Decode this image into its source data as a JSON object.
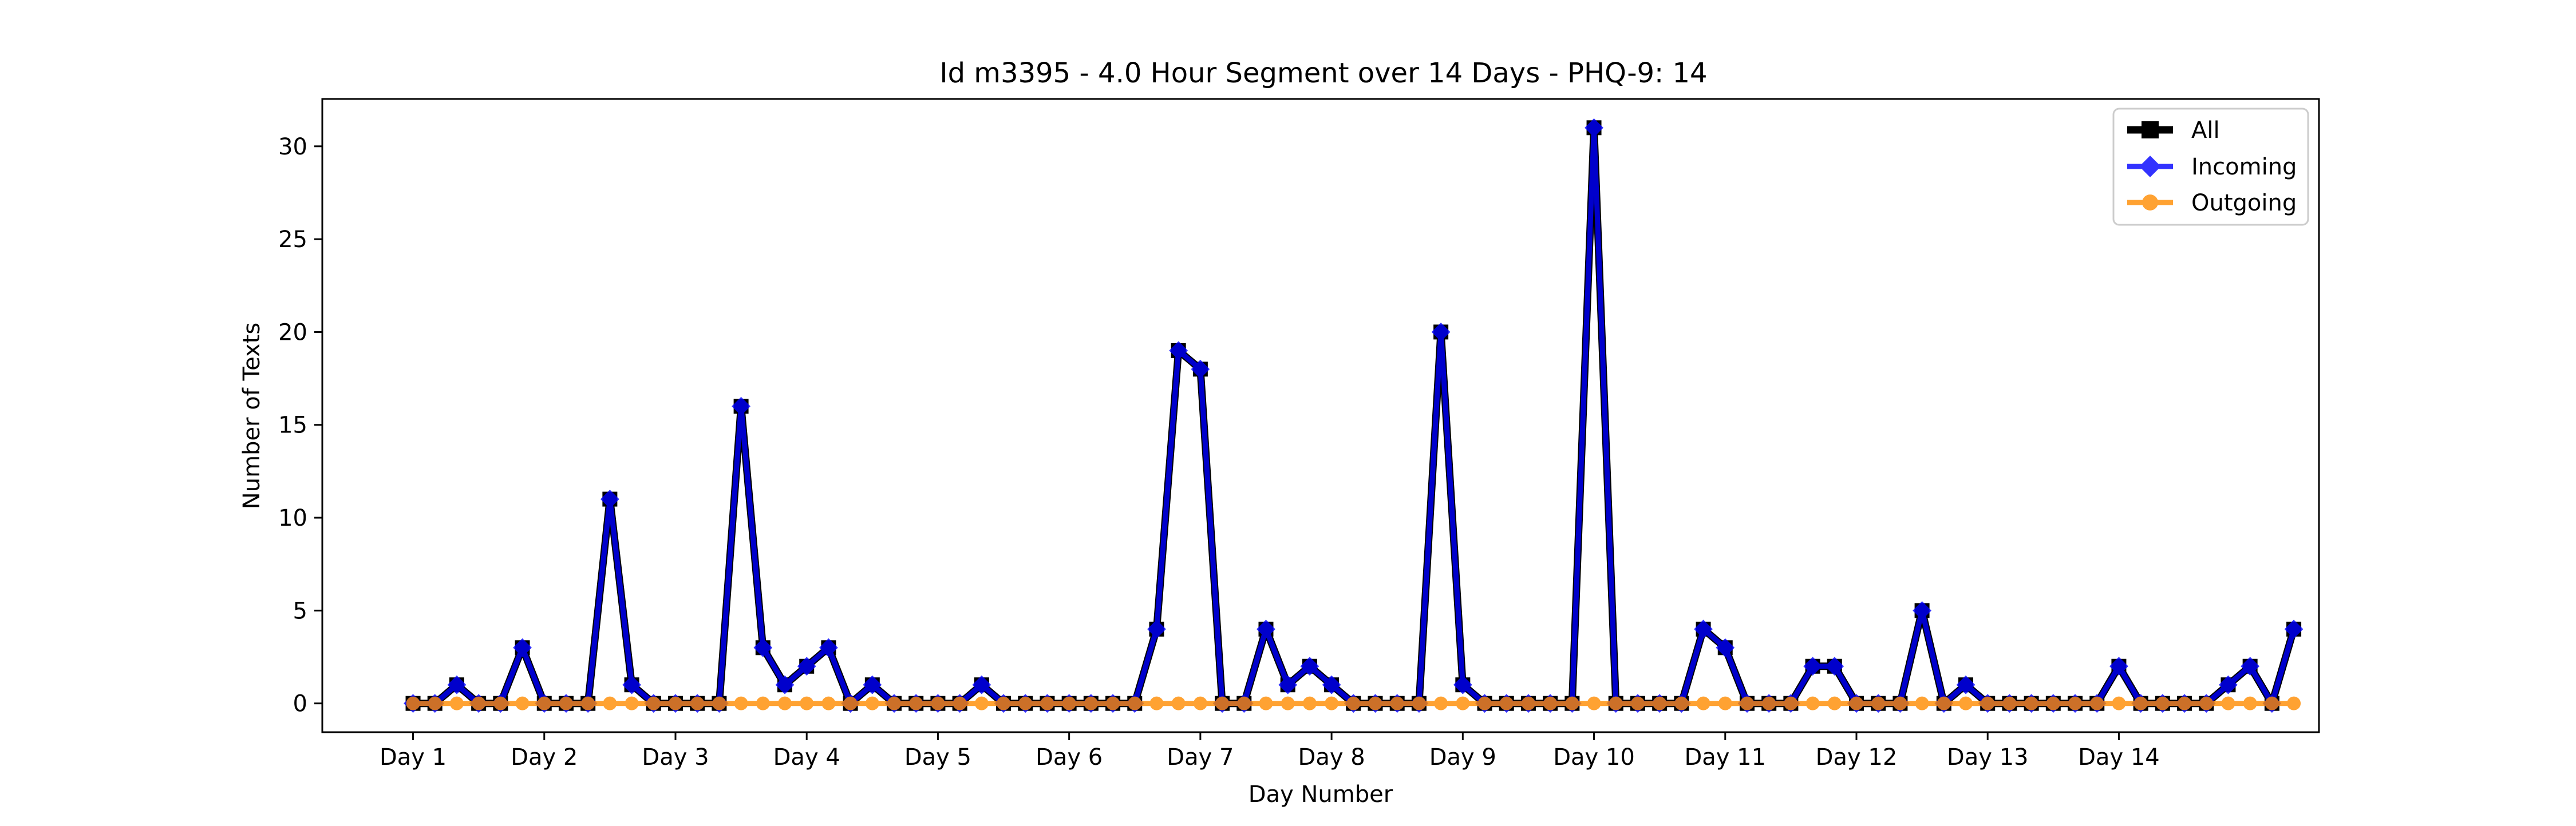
{
  "chart_data": {
    "type": "line",
    "title": "Id m3395 - 4.0 Hour Segment over 14 Days - PHQ-9: 14",
    "xlabel": "Day Number",
    "ylabel": "Number of Texts",
    "xticks": [
      {
        "label": "Day 1",
        "index": 0
      },
      {
        "label": "Day 2",
        "index": 6
      },
      {
        "label": "Day 3",
        "index": 12
      },
      {
        "label": "Day 4",
        "index": 18
      },
      {
        "label": "Day 5",
        "index": 24
      },
      {
        "label": "Day 6",
        "index": 30
      },
      {
        "label": "Day 7",
        "index": 36
      },
      {
        "label": "Day 8",
        "index": 42
      },
      {
        "label": "Day 9",
        "index": 48
      },
      {
        "label": "Day 10",
        "index": 54
      },
      {
        "label": "Day 11",
        "index": 60
      },
      {
        "label": "Day 12",
        "index": 66
      },
      {
        "label": "Day 13",
        "index": 72
      },
      {
        "label": "Day 14",
        "index": 78
      }
    ],
    "yticks": [
      0,
      5,
      10,
      15,
      20,
      25,
      30
    ],
    "ylim": [
      -1.55,
      32.55
    ],
    "xlim": [
      -4.15,
      87.15
    ],
    "grid": false,
    "legend_position": "top-right",
    "series": [
      {
        "name": "All",
        "color": "#000000",
        "marker": "square",
        "values": [
          0,
          0,
          1,
          0,
          0,
          3,
          0,
          0,
          0,
          11,
          1,
          0,
          0,
          0,
          0,
          16,
          3,
          1,
          2,
          3,
          0,
          1,
          0,
          0,
          0,
          0,
          1,
          0,
          0,
          0,
          0,
          0,
          0,
          0,
          4,
          19,
          18,
          0,
          0,
          4,
          1,
          2,
          1,
          0,
          0,
          0,
          0,
          20,
          1,
          0,
          0,
          0,
          0,
          0,
          31,
          0,
          0,
          0,
          0,
          4,
          3,
          0,
          0,
          0,
          2,
          2,
          0,
          0,
          0,
          5,
          0,
          1,
          0,
          0,
          0,
          0,
          0,
          0,
          2,
          0,
          0,
          0,
          0,
          1,
          2,
          0,
          4
        ]
      },
      {
        "name": "Incoming",
        "color": "#0000ff",
        "marker": "diamond",
        "values": [
          0,
          0,
          1,
          0,
          0,
          3,
          0,
          0,
          0,
          11,
          1,
          0,
          0,
          0,
          0,
          16,
          3,
          1,
          2,
          3,
          0,
          1,
          0,
          0,
          0,
          0,
          1,
          0,
          0,
          0,
          0,
          0,
          0,
          0,
          4,
          19,
          18,
          0,
          0,
          4,
          1,
          2,
          1,
          0,
          0,
          0,
          0,
          20,
          1,
          0,
          0,
          0,
          0,
          0,
          31,
          0,
          0,
          0,
          0,
          4,
          3,
          0,
          0,
          0,
          2,
          2,
          0,
          0,
          0,
          5,
          0,
          1,
          0,
          0,
          0,
          0,
          0,
          0,
          2,
          0,
          0,
          0,
          0,
          1,
          2,
          0,
          4
        ]
      },
      {
        "name": "Outgoing",
        "color": "#ff8c00",
        "marker": "circle",
        "values": [
          0,
          0,
          0,
          0,
          0,
          0,
          0,
          0,
          0,
          0,
          0,
          0,
          0,
          0,
          0,
          0,
          0,
          0,
          0,
          0,
          0,
          0,
          0,
          0,
          0,
          0,
          0,
          0,
          0,
          0,
          0,
          0,
          0,
          0,
          0,
          0,
          0,
          0,
          0,
          0,
          0,
          0,
          0,
          0,
          0,
          0,
          0,
          0,
          0,
          0,
          0,
          0,
          0,
          0,
          0,
          0,
          0,
          0,
          0,
          0,
          0,
          0,
          0,
          0,
          0,
          0,
          0,
          0,
          0,
          0,
          0,
          0,
          0,
          0,
          0,
          0,
          0,
          0,
          0,
          0,
          0,
          0,
          0,
          0,
          0,
          0,
          0
        ]
      }
    ]
  }
}
